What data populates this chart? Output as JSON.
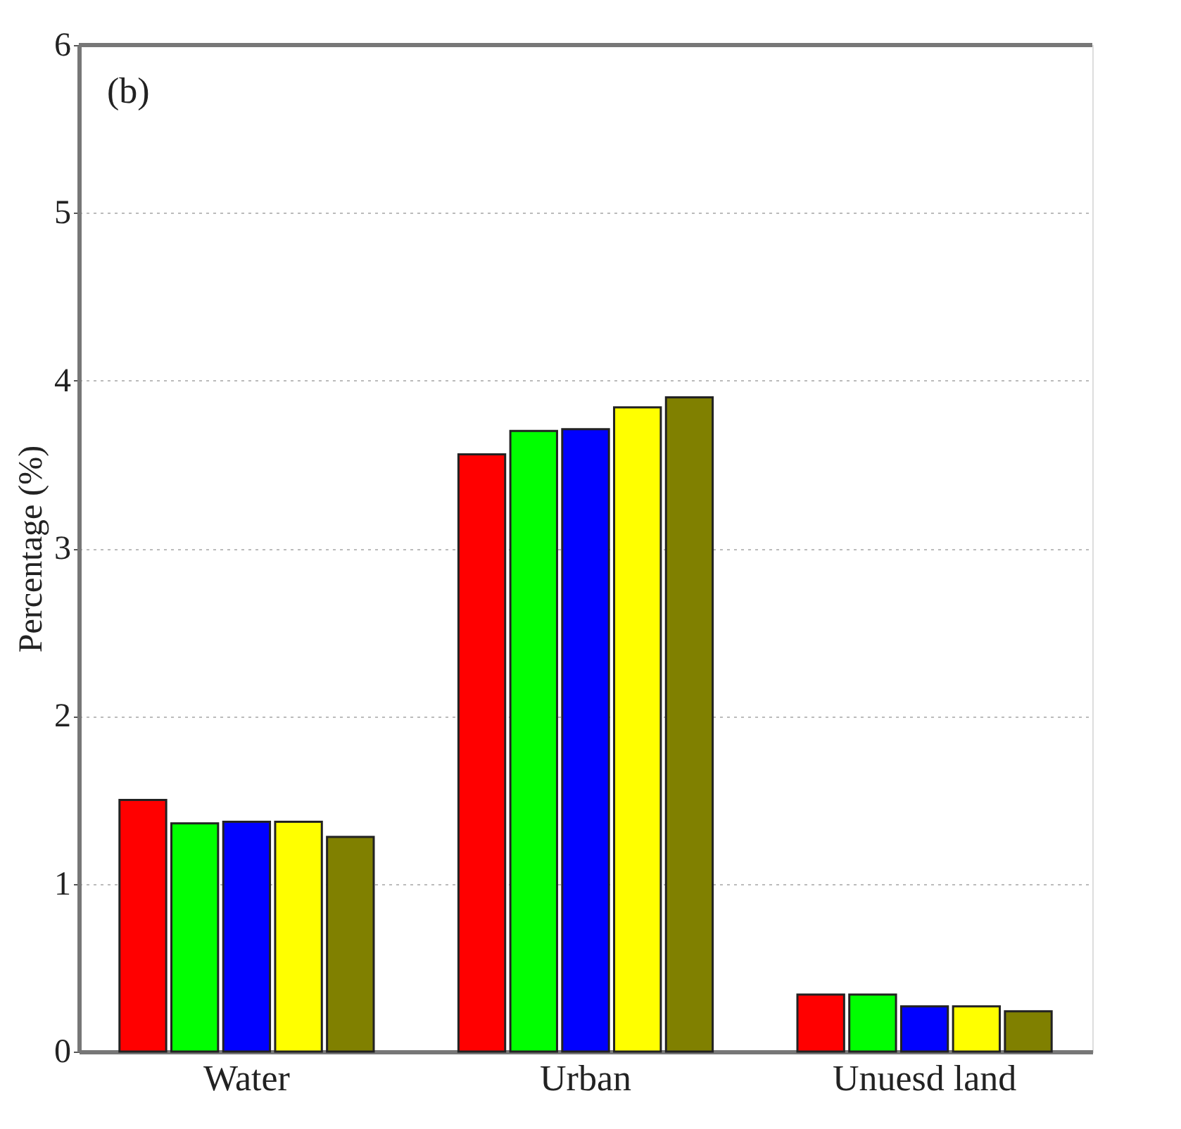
{
  "chart_data": {
    "type": "bar",
    "ylabel": "Percentage (%)",
    "annotations": [
      "(b)"
    ],
    "categories": [
      "Water",
      "Urban",
      "Unuesd land"
    ],
    "series": [
      {
        "color": "#ff0000",
        "values": [
          1.5,
          3.56,
          0.34
        ]
      },
      {
        "color": "#00ff00",
        "values": [
          1.36,
          3.7,
          0.34
        ]
      },
      {
        "color": "#0000ff",
        "values": [
          1.37,
          3.71,
          0.27
        ]
      },
      {
        "color": "#ffff00",
        "values": [
          1.37,
          3.84,
          0.27
        ]
      },
      {
        "color": "#808000",
        "values": [
          1.28,
          3.9,
          0.24
        ]
      }
    ],
    "ylim": [
      0,
      6
    ],
    "yticks": [
      0,
      1,
      2,
      3,
      4,
      5,
      6
    ],
    "grid": "y",
    "legend": false
  }
}
